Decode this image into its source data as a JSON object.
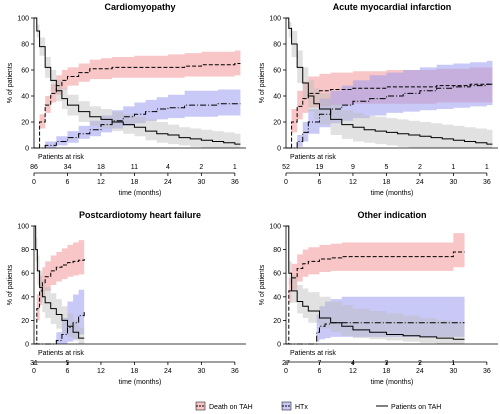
{
  "legend": [
    {
      "label": "Death on TAH",
      "style": "dashed",
      "fill": "#f4a9a9"
    },
    {
      "label": "HTx",
      "style": "dotdash",
      "fill": "#a9a9f4"
    },
    {
      "label": "Patients on TAH",
      "style": "solid",
      "fill": "none"
    }
  ],
  "chart_data": [
    {
      "type": "line",
      "title": "Cardiomyopathy",
      "xlabel": "time (months)",
      "ylabel": "% of patients",
      "xlim": [
        0,
        38
      ],
      "ylim": [
        0,
        100
      ],
      "xticks": [
        0,
        6,
        12,
        18,
        24,
        30,
        36
      ],
      "yticks": [
        0,
        20,
        40,
        60,
        80,
        100
      ],
      "risk_label": "Patients at risk",
      "risk_times": [
        0,
        6,
        12,
        18,
        24,
        30,
        36
      ],
      "risk_values": [
        "86",
        "34",
        "18",
        "11",
        "4",
        "2",
        "1"
      ],
      "series": [
        {
          "name": "Death on TAH",
          "x": [
            0,
            1,
            2,
            3,
            4,
            5,
            6,
            8,
            10,
            12,
            14,
            16,
            18,
            21,
            24,
            27,
            30,
            33,
            36,
            37
          ],
          "y": [
            0,
            20,
            33,
            42,
            48,
            52,
            55,
            58,
            61,
            61,
            62,
            62,
            62,
            62,
            62,
            63,
            64,
            64,
            65,
            65
          ],
          "lo": [
            0,
            15,
            27,
            35,
            41,
            45,
            48,
            51,
            53,
            53,
            54,
            54,
            54,
            54,
            54,
            55,
            55,
            55,
            56,
            56
          ],
          "hi": [
            0,
            26,
            40,
            49,
            56,
            60,
            62,
            65,
            68,
            69,
            70,
            70,
            71,
            71,
            72,
            73,
            74,
            74,
            75,
            75
          ]
        },
        {
          "name": "HTx",
          "x": [
            0,
            1,
            2,
            4,
            6,
            8,
            10,
            12,
            14,
            16,
            18,
            20,
            22,
            24,
            27,
            30,
            33,
            36,
            37
          ],
          "y": [
            0,
            0,
            2,
            5,
            8,
            11,
            14,
            18,
            21,
            24,
            26,
            28,
            30,
            31,
            33,
            33,
            34,
            34,
            34
          ],
          "lo": [
            0,
            0,
            0,
            2,
            4,
            7,
            9,
            12,
            15,
            17,
            19,
            21,
            22,
            23,
            24,
            24,
            25,
            25,
            25
          ],
          "hi": [
            0,
            0,
            5,
            9,
            13,
            17,
            21,
            25,
            29,
            32,
            35,
            37,
            39,
            41,
            44,
            44,
            45,
            45,
            45
          ]
        },
        {
          "name": "Patients on TAH",
          "x": [
            0,
            0.5,
            1,
            2,
            3,
            4,
            5,
            6,
            8,
            10,
            12,
            14,
            16,
            18,
            20,
            22,
            24,
            26,
            28,
            30,
            32,
            34,
            36,
            37
          ],
          "y": [
            100,
            90,
            78,
            62,
            52,
            44,
            38,
            33,
            28,
            24,
            22,
            20,
            18,
            16,
            13,
            11,
            10,
            8,
            7,
            6,
            5,
            4,
            3,
            3
          ],
          "lo": [
            100,
            85,
            71,
            54,
            44,
            36,
            30,
            25,
            20,
            17,
            15,
            13,
            11,
            9,
            6,
            4,
            3,
            2,
            1,
            0,
            0,
            0,
            0,
            0
          ],
          "hi": [
            100,
            95,
            85,
            70,
            60,
            52,
            46,
            41,
            36,
            32,
            30,
            28,
            26,
            24,
            22,
            20,
            18,
            16,
            15,
            14,
            13,
            12,
            11,
            11
          ]
        }
      ]
    },
    {
      "type": "line",
      "title": "Acute myocardial infarction",
      "xlabel": "time (months)",
      "ylabel": "% of patients",
      "xlim": [
        0,
        38
      ],
      "ylim": [
        0,
        100
      ],
      "xticks": [
        0,
        6,
        12,
        18,
        24,
        30,
        36
      ],
      "yticks": [
        0,
        20,
        40,
        60,
        80,
        100
      ],
      "risk_label": "Patients at risk",
      "risk_times": [
        0,
        6,
        12,
        18,
        24,
        30,
        36
      ],
      "risk_values": [
        "52",
        "19",
        "9",
        "5",
        "2",
        "1",
        "1"
      ],
      "series": [
        {
          "name": "Death on TAH",
          "x": [
            0,
            1,
            2,
            3,
            4,
            6,
            8,
            10,
            12,
            15,
            18,
            21,
            24,
            27,
            30,
            33,
            36,
            37
          ],
          "y": [
            0,
            20,
            32,
            38,
            42,
            44,
            45,
            45,
            46,
            46,
            47,
            47,
            47,
            48,
            48,
            49,
            49,
            49
          ],
          "lo": [
            0,
            12,
            22,
            27,
            31,
            32,
            33,
            33,
            34,
            34,
            34,
            34,
            34,
            35,
            35,
            35,
            35,
            35
          ],
          "hi": [
            0,
            30,
            44,
            51,
            55,
            57,
            58,
            58,
            59,
            59,
            60,
            60,
            60,
            61,
            61,
            62,
            62,
            62
          ]
        },
        {
          "name": "HTx",
          "x": [
            0,
            1,
            2,
            3,
            4,
            6,
            8,
            10,
            12,
            15,
            18,
            21,
            24,
            27,
            30,
            33,
            36,
            37
          ],
          "y": [
            0,
            0,
            5,
            12,
            20,
            26,
            30,
            33,
            36,
            38,
            40,
            42,
            44,
            46,
            47,
            48,
            49,
            49
          ],
          "lo": [
            0,
            0,
            1,
            5,
            11,
            16,
            19,
            21,
            23,
            25,
            27,
            28,
            29,
            30,
            31,
            32,
            33,
            33
          ],
          "hi": [
            0,
            0,
            10,
            20,
            30,
            38,
            44,
            48,
            52,
            56,
            58,
            60,
            62,
            64,
            65,
            66,
            67,
            67
          ]
        },
        {
          "name": "Patients on TAH",
          "x": [
            0,
            0.5,
            1,
            2,
            3,
            4,
            5,
            6,
            8,
            10,
            12,
            14,
            16,
            18,
            20,
            22,
            24,
            26,
            28,
            30,
            32,
            34,
            36,
            37
          ],
          "y": [
            100,
            92,
            80,
            62,
            50,
            40,
            34,
            30,
            22,
            18,
            16,
            14,
            13,
            12,
            11,
            10,
            9,
            8,
            7,
            6,
            5,
            4,
            3,
            3
          ],
          "lo": [
            100,
            85,
            70,
            50,
            38,
            28,
            22,
            18,
            10,
            7,
            5,
            4,
            3,
            2,
            1,
            0,
            0,
            0,
            0,
            0,
            0,
            0,
            0,
            0
          ],
          "hi": [
            100,
            97,
            90,
            75,
            62,
            52,
            46,
            42,
            34,
            29,
            27,
            25,
            24,
            23,
            22,
            21,
            20,
            19,
            18,
            17,
            16,
            15,
            14,
            14
          ]
        }
      ]
    },
    {
      "type": "line",
      "title": "Postcardiotomy heart failure",
      "xlabel": "time (months)",
      "ylabel": "% of patients",
      "xlim": [
        0,
        38
      ],
      "ylim": [
        0,
        100
      ],
      "xticks": [
        0,
        6,
        12,
        18,
        24,
        30,
        36
      ],
      "yticks": [
        0,
        20,
        40,
        60,
        80,
        100
      ],
      "risk_label": "Patients at risk",
      "risk_times": [
        0,
        6
      ],
      "risk_values": [
        "31",
        "5"
      ],
      "series": [
        {
          "name": "Death on TAH",
          "x": [
            0,
            0.5,
            1,
            1.5,
            2,
            3,
            4,
            5,
            6,
            7,
            8,
            9
          ],
          "y": [
            0,
            30,
            45,
            52,
            57,
            62,
            65,
            67,
            69,
            70,
            71,
            72
          ],
          "lo": [
            0,
            20,
            33,
            40,
            45,
            50,
            53,
            55,
            57,
            58,
            59,
            59
          ],
          "hi": [
            0,
            42,
            58,
            65,
            70,
            75,
            78,
            81,
            84,
            86,
            88,
            89
          ]
        },
        {
          "name": "HTx",
          "x": [
            0,
            3,
            4,
            5,
            6,
            7,
            8,
            9
          ],
          "y": [
            0,
            0,
            3,
            8,
            14,
            18,
            24,
            27
          ],
          "lo": [
            0,
            0,
            0,
            0,
            2,
            4,
            8,
            10
          ],
          "hi": [
            0,
            0,
            10,
            22,
            36,
            42,
            46,
            48
          ]
        },
        {
          "name": "Patients on TAH",
          "x": [
            0,
            0.3,
            0.6,
            1,
            1.5,
            2,
            3,
            4,
            5,
            6,
            7,
            8,
            9
          ],
          "y": [
            100,
            80,
            62,
            48,
            40,
            35,
            30,
            25,
            20,
            15,
            10,
            5,
            5
          ],
          "lo": [
            100,
            70,
            50,
            35,
            27,
            22,
            17,
            13,
            9,
            6,
            3,
            0,
            0
          ],
          "hi": [
            100,
            90,
            75,
            62,
            54,
            48,
            43,
            38,
            32,
            26,
            20,
            14,
            14
          ]
        }
      ]
    },
    {
      "type": "line",
      "title": "Other indication",
      "xlabel": "time (months)",
      "ylabel": "% of patients",
      "xlim": [
        0,
        38
      ],
      "ylim": [
        0,
        100
      ],
      "xticks": [
        0,
        6,
        12,
        18,
        24,
        30,
        36
      ],
      "yticks": [
        0,
        20,
        40,
        60,
        80,
        100
      ],
      "risk_label": "Patients at risk",
      "risk_times": [
        0,
        6,
        12,
        18,
        24,
        30
      ],
      "risk_values": [
        "27",
        "7",
        "4",
        "3",
        "2",
        "1"
      ],
      "series": [
        {
          "name": "Death on TAH",
          "x": [
            0,
            0.5,
            1,
            2,
            3,
            4,
            6,
            8,
            10,
            12,
            15,
            18,
            21,
            24,
            27,
            30,
            32
          ],
          "y": [
            0,
            45,
            56,
            64,
            68,
            70,
            72,
            73,
            74,
            74,
            74,
            74,
            74,
            74,
            74,
            78,
            78
          ],
          "lo": [
            0,
            35,
            46,
            53,
            57,
            59,
            61,
            62,
            62,
            62,
            62,
            62,
            62,
            62,
            62,
            65,
            65
          ],
          "hi": [
            0,
            56,
            68,
            76,
            80,
            82,
            84,
            85,
            86,
            86,
            86,
            86,
            86,
            86,
            86,
            94,
            94
          ]
        },
        {
          "name": "HTx",
          "x": [
            0,
            5,
            5.5,
            6,
            7,
            8,
            10,
            12,
            15,
            18,
            21,
            24,
            27,
            30,
            32
          ],
          "y": [
            0,
            0,
            10,
            15,
            17,
            18,
            18,
            18,
            18,
            18,
            18,
            18,
            18,
            18,
            18
          ],
          "lo": [
            0,
            0,
            2,
            4,
            5,
            6,
            6,
            6,
            6,
            6,
            6,
            6,
            6,
            6,
            6
          ],
          "hi": [
            0,
            0,
            25,
            32,
            36,
            38,
            40,
            40,
            40,
            40,
            40,
            40,
            40,
            40,
            40
          ]
        },
        {
          "name": "Patients on TAH",
          "x": [
            0,
            0.5,
            1,
            2,
            3,
            4,
            6,
            8,
            10,
            12,
            15,
            18,
            21,
            24,
            27,
            30,
            32
          ],
          "y": [
            100,
            60,
            45,
            36,
            32,
            28,
            22,
            18,
            15,
            12,
            10,
            8,
            7,
            6,
            5,
            4,
            4
          ],
          "lo": [
            100,
            50,
            35,
            26,
            22,
            18,
            13,
            10,
            7,
            5,
            4,
            3,
            2,
            1,
            0,
            0,
            0
          ],
          "hi": [
            100,
            70,
            58,
            50,
            47,
            44,
            40,
            36,
            33,
            30,
            28,
            26,
            24,
            22,
            20,
            19,
            19
          ]
        }
      ]
    }
  ]
}
